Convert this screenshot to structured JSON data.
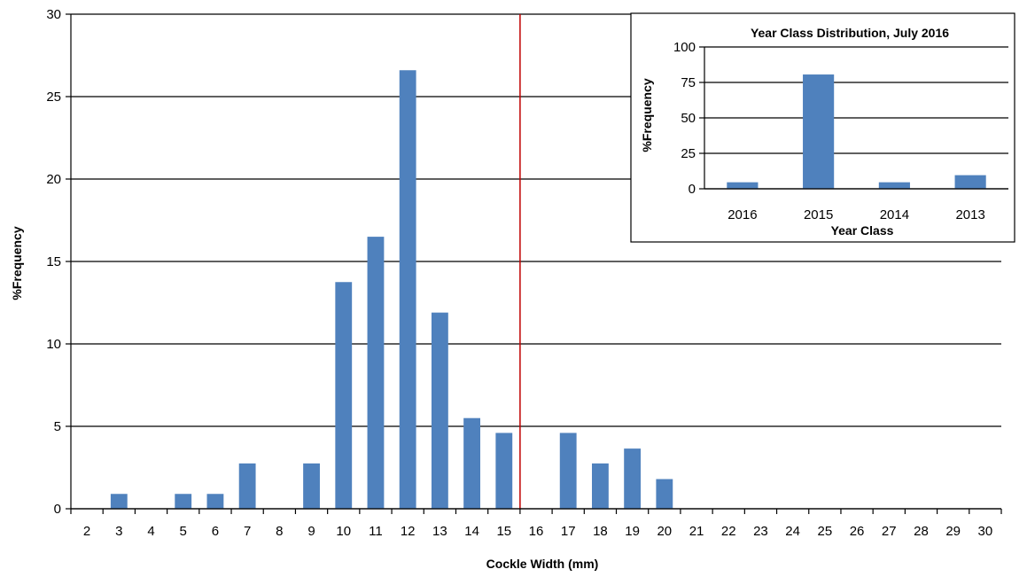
{
  "chart_data": [
    {
      "id": "main",
      "type": "bar",
      "title": "",
      "xlabel": "Cockle Width (mm)",
      "ylabel": "%Frequency",
      "categories": [
        "2",
        "3",
        "4",
        "5",
        "6",
        "7",
        "8",
        "9",
        "10",
        "11",
        "12",
        "13",
        "14",
        "15",
        "16",
        "17",
        "18",
        "19",
        "20",
        "21",
        "22",
        "23",
        "24",
        "25",
        "26",
        "27",
        "28",
        "29",
        "30"
      ],
      "values": [
        0,
        0.9,
        0,
        0.9,
        0.9,
        2.75,
        0,
        2.75,
        13.75,
        16.5,
        26.6,
        11.9,
        5.5,
        4.6,
        0,
        4.6,
        2.75,
        3.65,
        1.8,
        0,
        0,
        0,
        0,
        0,
        0,
        0,
        0,
        0,
        0
      ],
      "ylim": [
        0,
        30
      ],
      "yticks": [
        0,
        5,
        10,
        15,
        20,
        25,
        30
      ],
      "grid": true,
      "bar_color": "#4f81bd",
      "reference_line": {
        "x": 15.5,
        "color": "#c00000"
      }
    },
    {
      "id": "inset",
      "type": "bar",
      "title": "Year Class Distribution,  July 2016",
      "xlabel": "Year Class",
      "ylabel": "%Frequency",
      "categories": [
        "2016",
        "2015",
        "2014",
        "2013"
      ],
      "values": [
        4.6,
        80.6,
        4.6,
        9.6
      ],
      "ylim": [
        0,
        100
      ],
      "yticks": [
        0,
        25,
        50,
        75,
        100
      ],
      "grid": true,
      "bar_color": "#4f81bd",
      "legend": "none"
    }
  ]
}
